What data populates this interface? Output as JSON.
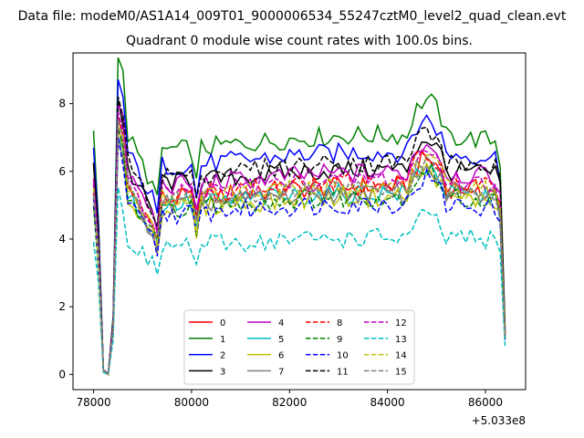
{
  "figure": {
    "suptitle": "Data file: modeM0/AS1A14_009T01_9000006534_55247cztM0_level2_quad_clean.evt",
    "offset_label": "+5.033e8"
  },
  "chart_data": {
    "type": "line",
    "title": "Quadrant 0 module wise count rates with 100.0s bins.",
    "xlabel": "",
    "ylabel": "",
    "x_offset": 503300000,
    "xlim": [
      77580,
      86820
    ],
    "ylim": [
      -0.45,
      9.5
    ],
    "x_ticks": [
      78000,
      80000,
      82000,
      84000,
      86000
    ],
    "x_tick_labels": [
      "78000",
      "80000",
      "82000",
      "84000",
      "86000"
    ],
    "y_ticks": [
      0,
      2,
      4,
      6,
      8
    ],
    "y_tick_labels": [
      "0",
      "2",
      "4",
      "6",
      "8"
    ],
    "grid": false,
    "legend_position": "lower-center",
    "legend_columns": 4,
    "x_start": 78000,
    "x_end": 86400,
    "x_step": 100,
    "series": [
      {
        "name": "0",
        "color": "#ff0000",
        "dash": "solid",
        "base": 5.5
      },
      {
        "name": "1",
        "color": "#008000",
        "dash": "solid",
        "base": 7.0,
        "values_hint": "highest"
      },
      {
        "name": "2",
        "color": "#0000ff",
        "dash": "solid",
        "base": 6.5
      },
      {
        "name": "3",
        "color": "#000000",
        "dash": "solid",
        "base": 6.0
      },
      {
        "name": "4",
        "color": "#bf00bf",
        "dash": "solid",
        "base": 5.9
      },
      {
        "name": "5",
        "color": "#00bfbf",
        "dash": "solid",
        "base": 5.3
      },
      {
        "name": "6",
        "color": "#bfbf00",
        "dash": "solid",
        "base": 5.2
      },
      {
        "name": "7",
        "color": "#808080",
        "dash": "solid",
        "base": 5.3
      },
      {
        "name": "8",
        "color": "#ff0000",
        "dash": "dashed",
        "base": 5.6
      },
      {
        "name": "9",
        "color": "#008000",
        "dash": "dashed",
        "base": 5.2
      },
      {
        "name": "10",
        "color": "#0000ff",
        "dash": "dashed",
        "base": 5.0
      },
      {
        "name": "11",
        "color": "#000000",
        "dash": "dashed",
        "base": 6.2
      },
      {
        "name": "12",
        "color": "#bf00bf",
        "dash": "dashed",
        "base": 5.7
      },
      {
        "name": "13",
        "color": "#00bfbf",
        "dash": "dashed",
        "base": 4.0
      },
      {
        "name": "14",
        "color": "#bfbf00",
        "dash": "dashed",
        "base": 5.5
      },
      {
        "name": "15",
        "color": "#808080",
        "dash": "dashed",
        "base": 5.4
      }
    ]
  }
}
